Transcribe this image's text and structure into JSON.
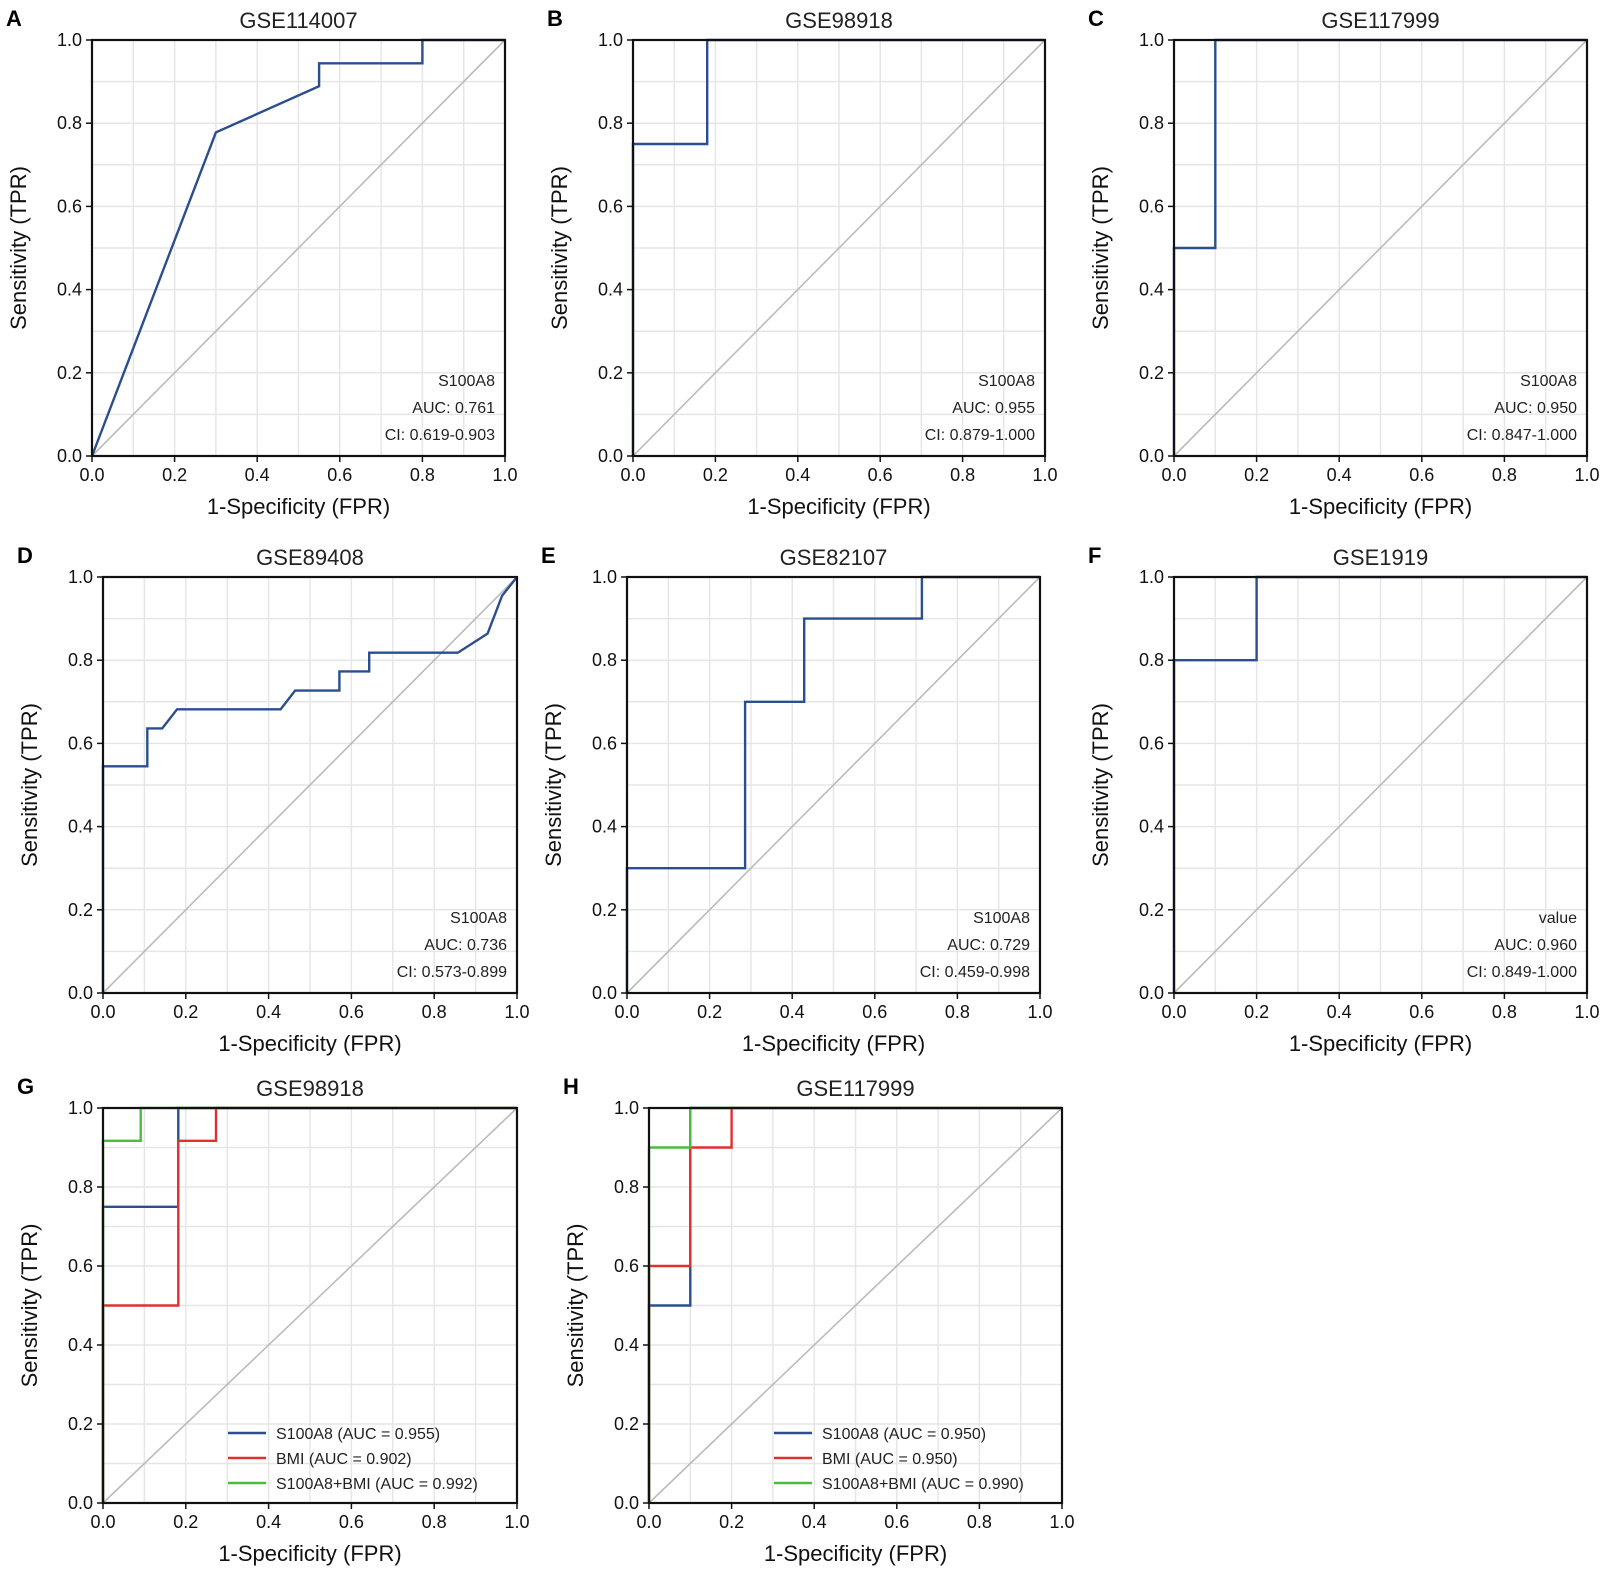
{
  "figure": {
    "background": "#ffffff",
    "grid_color": "#e6e6e6",
    "diagonal_color": "#bbbbbb"
  },
  "chart_data": [
    {
      "panel": "A",
      "type": "line",
      "title": "GSE114007",
      "xlabel": "1-Specificity (FPR)",
      "ylabel": "Sensitivity (TPR)",
      "xlim": [
        0,
        1
      ],
      "ylim": [
        0,
        1
      ],
      "xticks": [
        "0.0",
        "0.2",
        "0.4",
        "0.6",
        "0.8",
        "1.0"
      ],
      "yticks": [
        "0.0",
        "0.2",
        "0.4",
        "0.6",
        "0.8",
        "1.0"
      ],
      "grid": true,
      "diagonal": true,
      "annotation": [
        "S100A8",
        "AUC: 0.761",
        "CI: 0.619-0.903"
      ],
      "series": [
        {
          "name": "S100A8",
          "color": "#2b4f8e",
          "x": [
            0,
            0.3,
            0.55,
            0.55,
            0.8,
            0.8,
            1.0
          ],
          "y": [
            0,
            0.778,
            0.889,
            0.944,
            0.944,
            1.0,
            1.0
          ]
        }
      ]
    },
    {
      "panel": "B",
      "type": "line",
      "title": "GSE98918",
      "xlabel": "1-Specificity (FPR)",
      "ylabel": "Sensitivity (TPR)",
      "xlim": [
        0,
        1
      ],
      "ylim": [
        0,
        1
      ],
      "xticks": [
        "0.0",
        "0.2",
        "0.4",
        "0.6",
        "0.8",
        "1.0"
      ],
      "yticks": [
        "0.0",
        "0.2",
        "0.4",
        "0.6",
        "0.8",
        "1.0"
      ],
      "grid": true,
      "diagonal": true,
      "annotation": [
        "S100A8",
        "AUC: 0.955",
        "CI: 0.879-1.000"
      ],
      "series": [
        {
          "name": "S100A8",
          "color": "#2b4f8e",
          "x": [
            0,
            0,
            0.18,
            0.18,
            1.0
          ],
          "y": [
            0,
            0.75,
            0.75,
            1.0,
            1.0
          ]
        }
      ]
    },
    {
      "panel": "C",
      "type": "line",
      "title": "GSE117999",
      "xlabel": "1-Specificity (FPR)",
      "ylabel": "Sensitivity (TPR)",
      "xlim": [
        0,
        1
      ],
      "ylim": [
        0,
        1
      ],
      "xticks": [
        "0.0",
        "0.2",
        "0.4",
        "0.6",
        "0.8",
        "1.0"
      ],
      "yticks": [
        "0.0",
        "0.2",
        "0.4",
        "0.6",
        "0.8",
        "1.0"
      ],
      "grid": true,
      "diagonal": true,
      "annotation": [
        "S100A8",
        "AUC: 0.950",
        "CI: 0.847-1.000"
      ],
      "series": [
        {
          "name": "S100A8",
          "color": "#2b4f8e",
          "x": [
            0,
            0,
            0.1,
            0.1,
            1.0
          ],
          "y": [
            0,
            0.5,
            0.5,
            1.0,
            1.0
          ]
        }
      ]
    },
    {
      "panel": "D",
      "type": "line",
      "title": "GSE89408",
      "xlabel": "1-Specificity (FPR)",
      "ylabel": "Sensitivity (TPR)",
      "xlim": [
        0,
        1
      ],
      "ylim": [
        0,
        1
      ],
      "xticks": [
        "0.0",
        "0.2",
        "0.4",
        "0.6",
        "0.8",
        "1.0"
      ],
      "yticks": [
        "0.0",
        "0.2",
        "0.4",
        "0.6",
        "0.8",
        "1.0"
      ],
      "grid": true,
      "diagonal": true,
      "annotation": [
        "S100A8",
        "AUC: 0.736",
        "CI: 0.573-0.899"
      ],
      "series": [
        {
          "name": "S100A8",
          "color": "#2b4f8e",
          "x": [
            0,
            0,
            0.107,
            0.107,
            0.143,
            0.179,
            0.429,
            0.464,
            0.571,
            0.571,
            0.643,
            0.643,
            0.857,
            0.929,
            0.964,
            1.0
          ],
          "y": [
            0,
            0.545,
            0.545,
            0.636,
            0.636,
            0.682,
            0.682,
            0.727,
            0.727,
            0.773,
            0.773,
            0.818,
            0.818,
            0.864,
            0.955,
            1.0
          ]
        }
      ]
    },
    {
      "panel": "E",
      "type": "line",
      "title": "GSE82107",
      "xlabel": "1-Specificity (FPR)",
      "ylabel": "Sensitivity (TPR)",
      "xlim": [
        0,
        1
      ],
      "ylim": [
        0,
        1
      ],
      "xticks": [
        "0.0",
        "0.2",
        "0.4",
        "0.6",
        "0.8",
        "1.0"
      ],
      "yticks": [
        "0.0",
        "0.2",
        "0.4",
        "0.6",
        "0.8",
        "1.0"
      ],
      "grid": true,
      "diagonal": true,
      "annotation": [
        "S100A8",
        "AUC: 0.729",
        "CI: 0.459-0.998"
      ],
      "series": [
        {
          "name": "S100A8",
          "color": "#2b4f8e",
          "x": [
            0,
            0,
            0.286,
            0.286,
            0.429,
            0.429,
            0.714,
            0.714,
            1.0
          ],
          "y": [
            0,
            0.3,
            0.3,
            0.7,
            0.7,
            0.9,
            0.9,
            1.0,
            1.0
          ]
        }
      ]
    },
    {
      "panel": "F",
      "type": "line",
      "title": "GSE1919",
      "xlabel": "1-Specificity (FPR)",
      "ylabel": "Sensitivity (TPR)",
      "xlim": [
        0,
        1
      ],
      "ylim": [
        0,
        1
      ],
      "xticks": [
        "0.0",
        "0.2",
        "0.4",
        "0.6",
        "0.8",
        "1.0"
      ],
      "yticks": [
        "0.0",
        "0.2",
        "0.4",
        "0.6",
        "0.8",
        "1.0"
      ],
      "grid": true,
      "diagonal": true,
      "annotation": [
        "value",
        "AUC: 0.960",
        "CI: 0.849-1.000"
      ],
      "series": [
        {
          "name": "value",
          "color": "#2b4f8e",
          "x": [
            0,
            0,
            0.2,
            0.2,
            1.0
          ],
          "y": [
            0,
            0.8,
            0.8,
            1.0,
            1.0
          ]
        }
      ]
    },
    {
      "panel": "G",
      "type": "line",
      "title": "GSE98918",
      "xlabel": "1-Specificity (FPR)",
      "ylabel": "Sensitivity (TPR)",
      "xlim": [
        0,
        1
      ],
      "ylim": [
        0,
        1
      ],
      "xticks": [
        "0.0",
        "0.2",
        "0.4",
        "0.6",
        "0.8",
        "1.0"
      ],
      "yticks": [
        "0.0",
        "0.2",
        "0.4",
        "0.6",
        "0.8",
        "1.0"
      ],
      "grid": true,
      "diagonal": true,
      "legend": "bottom-right",
      "series": [
        {
          "name": "S100A8 (AUC = 0.955)",
          "color": "#2b4f8e",
          "x": [
            0,
            0,
            0.182,
            0.182,
            1.0
          ],
          "y": [
            0,
            0.75,
            0.75,
            1.0,
            1.0
          ]
        },
        {
          "name": "BMI (AUC = 0.902)",
          "color": "#e03030",
          "x": [
            0,
            0,
            0.182,
            0.182,
            0.273,
            0.273,
            1.0
          ],
          "y": [
            0,
            0.5,
            0.5,
            0.917,
            0.917,
            1.0,
            1.0
          ]
        },
        {
          "name": "S100A8+BMI (AUC = 0.992)",
          "color": "#4cbb3e",
          "x": [
            0,
            0,
            0.091,
            0.091,
            1.0
          ],
          "y": [
            0,
            0.917,
            0.917,
            1.0,
            1.0
          ]
        }
      ]
    },
    {
      "panel": "H",
      "type": "line",
      "title": "GSE117999",
      "xlabel": "1-Specificity (FPR)",
      "ylabel": "Sensitivity (TPR)",
      "xlim": [
        0,
        1
      ],
      "ylim": [
        0,
        1
      ],
      "xticks": [
        "0.0",
        "0.2",
        "0.4",
        "0.6",
        "0.8",
        "1.0"
      ],
      "yticks": [
        "0.0",
        "0.2",
        "0.4",
        "0.6",
        "0.8",
        "1.0"
      ],
      "grid": true,
      "diagonal": true,
      "legend": "bottom-right",
      "series": [
        {
          "name": "S100A8 (AUC = 0.950)",
          "color": "#2b4f8e",
          "x": [
            0,
            0,
            0.1,
            0.1,
            1.0
          ],
          "y": [
            0,
            0.5,
            0.5,
            1.0,
            1.0
          ]
        },
        {
          "name": "BMI (AUC = 0.950)",
          "color": "#e03030",
          "x": [
            0,
            0,
            0.1,
            0.1,
            0.2,
            0.2,
            1.0
          ],
          "y": [
            0,
            0.6,
            0.6,
            0.9,
            0.9,
            1.0,
            1.0
          ]
        },
        {
          "name": "S100A8+BMI (AUC = 0.990)",
          "color": "#4cbb3e",
          "x": [
            0,
            0,
            0.1,
            0.1,
            1.0
          ],
          "y": [
            0,
            0.9,
            0.9,
            1.0,
            1.0
          ]
        }
      ]
    }
  ]
}
